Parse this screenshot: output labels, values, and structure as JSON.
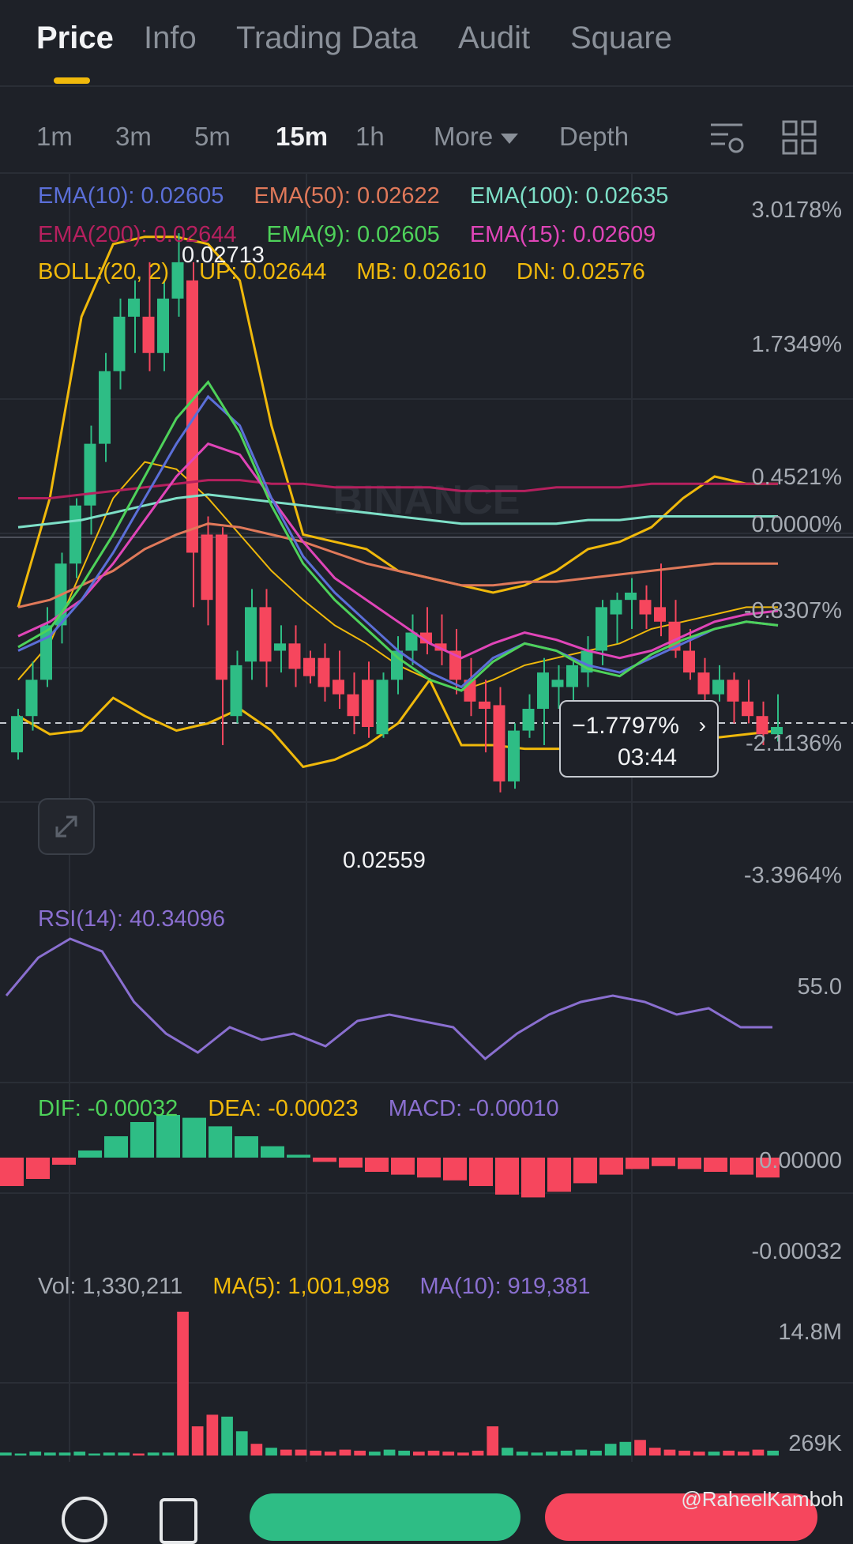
{
  "tabs": [
    "Price",
    "Info",
    "Trading Data",
    "Audit",
    "Square"
  ],
  "intervals": [
    "1m",
    "3m",
    "5m",
    "15m",
    "1h",
    "More",
    "Depth"
  ],
  "indicators": {
    "ema_row1": [
      {
        "text": "EMA(10): 0.02605",
        "color": "#5b6fd8"
      },
      {
        "text": "EMA(50): 0.02622",
        "color": "#e0795a"
      },
      {
        "text": "EMA(100): 0.02635",
        "color": "#7ee0c8"
      }
    ],
    "ema_row2": [
      {
        "text": "EMA(200): 0.02644",
        "color": "#b5205e"
      },
      {
        "text": "EMA(9): 0.02605",
        "color": "#4ed25a"
      },
      {
        "text": "EMA(15): 0.02609",
        "color": "#e045b8"
      }
    ],
    "boll_row": [
      {
        "text": "BOLL:(20, 2)",
        "color": "#f0b90b"
      },
      {
        "text": "UP: 0.02644",
        "color": "#f0b90b"
      },
      {
        "text": "MB: 0.02610",
        "color": "#f0b90b"
      },
      {
        "text": "DN: 0.02576",
        "color": "#f0b90b"
      }
    ]
  },
  "price_axis": [
    "3.0178%",
    "1.7349%",
    "0.4521%",
    "0.0000%",
    "-0.8307%",
    "-2.1136%",
    "-3.3964%"
  ],
  "high_label": "0.02713",
  "low_label": "0.02559",
  "watermark": "BINANCE",
  "price_tip": {
    "percent": "−1.7797%",
    "countdown": "03:44"
  },
  "rsi": {
    "label": "RSI(14): 40.34096",
    "axis": "55.0"
  },
  "macd": {
    "dif": "DIF: -0.00032",
    "dea": "DEA: -0.00023",
    "macd": "MACD: -0.00010",
    "axis_top": "0.00000",
    "axis_bottom": "-0.00032"
  },
  "volume": {
    "vol": "Vol: 1,330,211",
    "ma5": "MA(5): 1,001,998",
    "ma10": "MA(10): 919,381",
    "axis_top": "14.8M",
    "axis_bottom": "269K"
  },
  "credit": "@RaheelKamboh",
  "colors": {
    "up": "#2ebd85",
    "down": "#f6465d",
    "accent": "#f0b90b",
    "rsi": "#8a6fd0"
  },
  "candles": [
    [
      0.0257,
      0.02582,
      0.02568,
      0.0258
    ],
    [
      0.0258,
      0.02595,
      0.02576,
      0.0259
    ],
    [
      0.0259,
      0.0261,
      0.02588,
      0.02605
    ],
    [
      0.02605,
      0.02625,
      0.026,
      0.02622
    ],
    [
      0.02622,
      0.0264,
      0.02618,
      0.02638
    ],
    [
      0.02638,
      0.0266,
      0.0263,
      0.02655
    ],
    [
      0.02655,
      0.0268,
      0.0265,
      0.02675
    ],
    [
      0.02675,
      0.02695,
      0.0267,
      0.0269
    ],
    [
      0.0269,
      0.027,
      0.0268,
      0.02695
    ],
    [
      0.0269,
      0.02705,
      0.02675,
      0.0268
    ],
    [
      0.0268,
      0.027,
      0.02675,
      0.02695
    ],
    [
      0.02695,
      0.02713,
      0.0269,
      0.02705
    ],
    [
      0.027,
      0.02705,
      0.0261,
      0.02625
    ],
    [
      0.0263,
      0.02635,
      0.02605,
      0.02612
    ],
    [
      0.0263,
      0.02632,
      0.02572,
      0.0259
    ],
    [
      0.0258,
      0.02598,
      0.02578,
      0.02594
    ],
    [
      0.02595,
      0.02615,
      0.0259,
      0.0261
    ],
    [
      0.0261,
      0.02615,
      0.02588,
      0.02595
    ],
    [
      0.02598,
      0.02605,
      0.02592,
      0.026
    ],
    [
      0.026,
      0.02605,
      0.02588,
      0.02593
    ],
    [
      0.02596,
      0.02598,
      0.02589,
      0.02591
    ],
    [
      0.02596,
      0.026,
      0.02584,
      0.02588
    ],
    [
      0.0259,
      0.02598,
      0.02582,
      0.02586
    ],
    [
      0.02586,
      0.02592,
      0.02575,
      0.0258
    ],
    [
      0.0259,
      0.02595,
      0.02574,
      0.02577
    ],
    [
      0.02575,
      0.02592,
      0.02574,
      0.0259
    ],
    [
      0.0259,
      0.02602,
      0.02586,
      0.02598
    ],
    [
      0.02598,
      0.02608,
      0.02594,
      0.02603
    ],
    [
      0.02603,
      0.0261,
      0.02597,
      0.026
    ],
    [
      0.026,
      0.02608,
      0.02594,
      0.02598
    ],
    [
      0.02598,
      0.02604,
      0.02586,
      0.0259
    ],
    [
      0.0259,
      0.02596,
      0.0258,
      0.02584
    ],
    [
      0.02584,
      0.0259,
      0.0257,
      0.02582
    ],
    [
      0.02583,
      0.02588,
      0.02559,
      0.02562
    ],
    [
      0.02562,
      0.02578,
      0.0256,
      0.02576
    ],
    [
      0.02576,
      0.02586,
      0.02574,
      0.02582
    ],
    [
      0.02582,
      0.02596,
      0.02572,
      0.02592
    ],
    [
      0.02588,
      0.02594,
      0.02582,
      0.0259
    ],
    [
      0.02588,
      0.02596,
      0.02584,
      0.02594
    ],
    [
      0.02592,
      0.02602,
      0.02588,
      0.02598
    ],
    [
      0.02598,
      0.02612,
      0.02594,
      0.0261
    ],
    [
      0.02608,
      0.02614,
      0.026,
      0.02612
    ],
    [
      0.02612,
      0.02618,
      0.02604,
      0.02614
    ],
    [
      0.02612,
      0.02616,
      0.02604,
      0.02608
    ],
    [
      0.0261,
      0.02622,
      0.02602,
      0.02606
    ],
    [
      0.02606,
      0.02612,
      0.02596,
      0.02598
    ],
    [
      0.02598,
      0.02604,
      0.0259,
      0.02592
    ],
    [
      0.02592,
      0.02596,
      0.02582,
      0.02586
    ],
    [
      0.02586,
      0.02594,
      0.02584,
      0.0259
    ],
    [
      0.0259,
      0.02592,
      0.02578,
      0.02584
    ],
    [
      0.02584,
      0.0259,
      0.02578,
      0.0258
    ],
    [
      0.0258,
      0.02584,
      0.02572,
      0.02575
    ],
    [
      0.02575,
      0.02586,
      0.02573,
      0.02577
    ]
  ],
  "ema_lines": {
    "ema10": [
      0.02598,
      0.02602,
      0.02612,
      0.02625,
      0.0264,
      0.02655,
      0.02668,
      0.0266,
      0.0264,
      0.02624,
      0.02614,
      0.02606,
      0.02598,
      0.02592,
      0.02588,
      0.02596,
      0.026,
      0.02598,
      0.02594,
      0.02592,
      0.02596,
      0.026,
      0.02604,
      0.02606,
      0.02605
    ],
    "ema9": [
      0.02599,
      0.02604,
      0.02616,
      0.0263,
      0.02646,
      0.02662,
      0.02672,
      0.02658,
      0.02638,
      0.02622,
      0.02612,
      0.02604,
      0.02596,
      0.0259,
      0.02587,
      0.02595,
      0.026,
      0.02598,
      0.02593,
      0.02591,
      0.02597,
      0.02601,
      0.02604,
      0.02606,
      0.02605
    ],
    "ema15": [
      0.02602,
      0.02606,
      0.02612,
      0.02622,
      0.02634,
      0.02646,
      0.02655,
      0.02652,
      0.0264,
      0.02628,
      0.02618,
      0.02612,
      0.02606,
      0.026,
      0.02596,
      0.026,
      0.02603,
      0.02601,
      0.02598,
      0.02596,
      0.02598,
      0.02602,
      0.02606,
      0.02608,
      0.02609
    ],
    "ema50": [
      0.0261,
      0.02612,
      0.02616,
      0.0262,
      0.02626,
      0.0263,
      0.02633,
      0.02632,
      0.0263,
      0.02628,
      0.02625,
      0.02622,
      0.0262,
      0.02618,
      0.02616,
      0.02616,
      0.02617,
      0.02617,
      0.02618,
      0.02619,
      0.0262,
      0.02621,
      0.02622,
      0.02622,
      0.02622
    ],
    "ema100": [
      0.02632,
      0.02633,
      0.02634,
      0.02636,
      0.02638,
      0.0264,
      0.02641,
      0.0264,
      0.02639,
      0.02638,
      0.02637,
      0.02636,
      0.02635,
      0.02634,
      0.02633,
      0.02633,
      0.02633,
      0.02633,
      0.02634,
      0.02634,
      0.02635,
      0.02635,
      0.02635,
      0.02635,
      0.02635
    ],
    "ema200": [
      0.0264,
      0.0264,
      0.02641,
      0.02642,
      0.02643,
      0.02644,
      0.02645,
      0.02645,
      0.02644,
      0.02644,
      0.02643,
      0.02643,
      0.02643,
      0.02643,
      0.02642,
      0.02642,
      0.02642,
      0.02643,
      0.02643,
      0.02643,
      0.02644,
      0.02644,
      0.02644,
      0.02644,
      0.02644
    ],
    "boll_up": [
      0.0261,
      0.0264,
      0.0269,
      0.0271,
      0.02712,
      0.02712,
      0.0271,
      0.027,
      0.0266,
      0.0263,
      0.02628,
      0.02626,
      0.0262,
      0.02618,
      0.02616,
      0.02614,
      0.02616,
      0.0262,
      0.02626,
      0.02628,
      0.02632,
      0.0264,
      0.02646,
      0.02644,
      0.02644
    ],
    "boll_mb": [
      0.0259,
      0.026,
      0.0262,
      0.0264,
      0.0265,
      0.02648,
      0.0264,
      0.0263,
      0.0262,
      0.02612,
      0.02605,
      0.026,
      0.02594,
      0.0259,
      0.02587,
      0.0259,
      0.02594,
      0.02596,
      0.02598,
      0.026,
      0.02604,
      0.02606,
      0.02608,
      0.0261,
      0.0261
    ],
    "boll_dn": [
      0.0258,
      0.02575,
      0.02576,
      0.02585,
      0.0258,
      0.02576,
      0.02578,
      0.02582,
      0.02576,
      0.02566,
      0.02568,
      0.02572,
      0.02578,
      0.0259,
      0.02572,
      0.02572,
      0.02571,
      0.02571,
      0.02571,
      0.02571,
      0.02572,
      0.02573,
      0.02574,
      0.02575,
      0.02576
    ]
  },
  "rsi_values": [
    50,
    62,
    68,
    64,
    48,
    38,
    32,
    40,
    36,
    38,
    34,
    42,
    44,
    42,
    40,
    30,
    38,
    44,
    48,
    50,
    48,
    44,
    46,
    40,
    40
  ],
  "macd_hist": [
    -0.0002,
    -0.00015,
    -5e-05,
    5e-05,
    0.00015,
    0.00025,
    0.0003,
    0.00028,
    0.00022,
    0.00015,
    8e-05,
    2e-05,
    -3e-05,
    -7e-05,
    -0.0001,
    -0.00012,
    -0.00014,
    -0.00016,
    -0.0002,
    -0.00026,
    -0.00028,
    -0.00024,
    -0.00018,
    -0.00012,
    -8e-05,
    -6e-05,
    -8e-05,
    -0.0001,
    -0.00012,
    -0.00014
  ],
  "volume_values": [
    0.3,
    0.2,
    0.4,
    0.3,
    0.3,
    0.4,
    0.2,
    0.3,
    0.3,
    0.2,
    0.3,
    0.3,
    14.8,
    3.0,
    4.2,
    4.0,
    2.5,
    1.2,
    0.8,
    0.6,
    0.6,
    0.5,
    0.4,
    0.6,
    0.5,
    0.4,
    0.6,
    0.5,
    0.4,
    0.5,
    0.4,
    0.3,
    0.5,
    3.0,
    0.8,
    0.4,
    0.3,
    0.4,
    0.5,
    0.6,
    0.5,
    1.2,
    1.4,
    1.6,
    0.8,
    0.6,
    0.5,
    0.4,
    0.4,
    0.5,
    0.4,
    0.6,
    0.5
  ]
}
